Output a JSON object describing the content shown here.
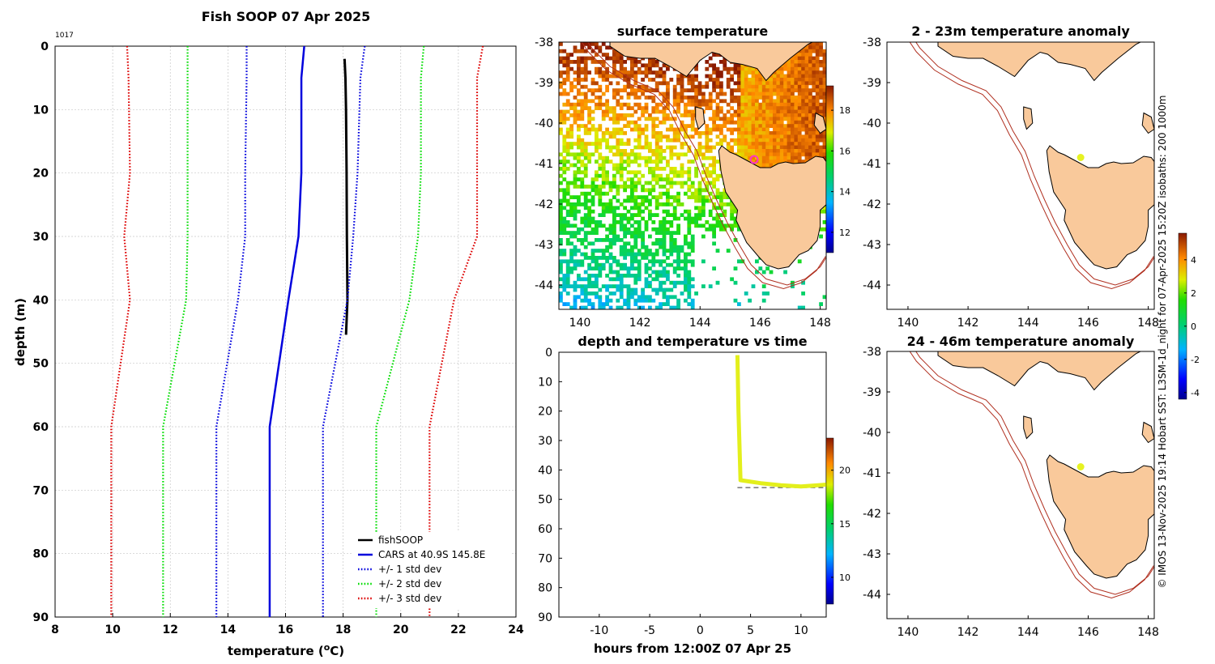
{
  "figure_title": "Fish SOOP 07 Apr 2025",
  "profile_id": "1017",
  "credit": "© IMOS 13-Nov-2025 19:14 Hobart SST: L3SM-1d_night for 07-Apr-2025 15:20Z isobaths: 200  1000m",
  "colors": {
    "fishsoop": "#000000",
    "cars": "#0000dd",
    "std1": "#0000dd",
    "std2": "#00dd00",
    "std3": "#dd0000",
    "land": "#f9c99b",
    "isobath": "#b03020",
    "marker_sst": "#ff33cc",
    "marker_anom": "#e6f222",
    "track": "#e3ef1c"
  },
  "chart_data": [
    {
      "type": "line",
      "name": "profile",
      "title": "Fish SOOP 07 Apr 2025",
      "xlabel": "temperature (°C)",
      "ylabel": "depth (m)",
      "xlim": [
        8,
        24
      ],
      "ylim": [
        0,
        90
      ],
      "y_reversed": true,
      "xticks": [
        "8",
        "10",
        "12",
        "14",
        "16",
        "18",
        "20",
        "22",
        "24"
      ],
      "yticks": [
        "0",
        "10",
        "20",
        "30",
        "40",
        "50",
        "60",
        "70",
        "80",
        "90"
      ],
      "grid": true,
      "legend_position": "bottom-right",
      "depth": [
        0,
        5,
        20,
        30,
        40,
        60,
        90
      ],
      "series": [
        {
          "name": "fishSOOP",
          "style": "solid",
          "color": "#000000",
          "depth": [
            2,
            5,
            10,
            20,
            30,
            40,
            45.5
          ],
          "values": [
            18.05,
            18.08,
            18.1,
            18.12,
            18.13,
            18.15,
            18.1
          ]
        },
        {
          "name": "CARS at 40.9S 145.8E",
          "style": "solid",
          "color": "#0000dd",
          "values": [
            16.65,
            16.55,
            16.55,
            16.45,
            16.1,
            15.45,
            15.45
          ]
        },
        {
          "name": "+/- 1 std dev",
          "style": "dotted",
          "color": "#0000dd",
          "values": [
            14.65,
            14.65,
            14.6,
            14.6,
            14.35,
            13.6,
            13.6
          ]
        },
        {
          "name": "+/- 1 std dev",
          "style": "dotted",
          "color": "#0000dd",
          "legend": false,
          "values": [
            18.75,
            18.6,
            18.5,
            18.35,
            18.15,
            17.3,
            17.3
          ]
        },
        {
          "name": "+/- 2 std dev",
          "style": "dotted",
          "color": "#00dd00",
          "values": [
            12.6,
            12.6,
            12.6,
            12.6,
            12.55,
            11.75,
            11.75
          ]
        },
        {
          "name": "+/- 2 std dev",
          "style": "dotted",
          "color": "#00dd00",
          "legend": false,
          "values": [
            20.8,
            20.7,
            20.7,
            20.6,
            20.3,
            19.15,
            19.15
          ]
        },
        {
          "name": "+/- 3 std dev",
          "style": "dotted",
          "color": "#dd0000",
          "values": [
            10.5,
            10.55,
            10.6,
            10.4,
            10.6,
            9.95,
            9.95
          ]
        },
        {
          "name": "+/- 3 std dev",
          "style": "dotted",
          "color": "#dd0000",
          "legend": false,
          "values": [
            22.85,
            22.65,
            22.65,
            22.65,
            21.85,
            21.0,
            21.0
          ]
        }
      ],
      "legend": [
        "fishSOOP",
        "CARS at 40.9S 145.8E",
        "+/- 1 std dev",
        "+/- 2 std dev",
        "+/- 3 std dev"
      ]
    },
    {
      "type": "heatmap",
      "name": "surface-temperature-map",
      "title": "surface temperature",
      "xlim": [
        139.3,
        148.2
      ],
      "ylim": [
        -44.6,
        -38
      ],
      "xticks": [
        "140",
        "142",
        "144",
        "146",
        "148"
      ],
      "yticks": [
        "-38",
        "-39",
        "-40",
        "-41",
        "-42",
        "-43",
        "-44"
      ],
      "colorbar": {
        "min": 11,
        "max": 19.2,
        "ticks": [
          "12",
          "14",
          "16",
          "18"
        ]
      },
      "marker": {
        "lon": 145.8,
        "lat": -40.9
      }
    },
    {
      "type": "scatter",
      "name": "depth-time",
      "title": "depth and temperature vs time",
      "xlabel": "hours from 12:00Z 07 Apr 25",
      "xlim": [
        -14,
        12.5
      ],
      "ylim": [
        0,
        90
      ],
      "y_reversed": true,
      "xticks": [
        "-10",
        "-5",
        "0",
        "5",
        "10"
      ],
      "yticks": [
        "0",
        "10",
        "20",
        "30",
        "40",
        "50",
        "60",
        "70",
        "80",
        "90"
      ],
      "track": {
        "hours": [
          3.7,
          3.8,
          4.0,
          6.0,
          8.0,
          10.0,
          12.5
        ],
        "depth": [
          1,
          20,
          43.5,
          44.5,
          45.2,
          45.6,
          45.0
        ],
        "temperature": [
          18.1,
          18.1,
          18.1,
          18.1,
          18.1,
          18.1,
          18.1
        ]
      },
      "max_depth_line": 46,
      "colorbar": {
        "min": 7.5,
        "max": 23,
        "ticks": [
          "10",
          "15",
          "20"
        ]
      }
    },
    {
      "type": "heatmap",
      "name": "anomaly-2-23m",
      "title": "2 - 23m temperature anomaly",
      "xlim": [
        139.3,
        148.2
      ],
      "ylim": [
        -44.6,
        -38
      ],
      "xticks": [
        "140",
        "142",
        "144",
        "146",
        "148"
      ],
      "yticks": [
        "-38",
        "-39",
        "-40",
        "-41",
        "-42",
        "-43",
        "-44"
      ],
      "marker": {
        "lon": 145.75,
        "lat": -40.85,
        "anomaly": 1.6
      }
    },
    {
      "type": "heatmap",
      "name": "anomaly-24-46m",
      "title": "24 - 46m temperature anomaly",
      "xlim": [
        139.3,
        148.2
      ],
      "ylim": [
        -44.6,
        -38
      ],
      "xticks": [
        "140",
        "142",
        "144",
        "146",
        "148"
      ],
      "yticks": [
        "-38",
        "-39",
        "-40",
        "-41",
        "-42",
        "-43",
        "-44"
      ],
      "marker": {
        "lon": 145.75,
        "lat": -40.85,
        "anomaly": 1.6
      },
      "colorbar": {
        "min": -4.4,
        "max": 5.6,
        "ticks": [
          "4",
          "2",
          "0",
          "-2",
          "-4"
        ]
      }
    }
  ]
}
